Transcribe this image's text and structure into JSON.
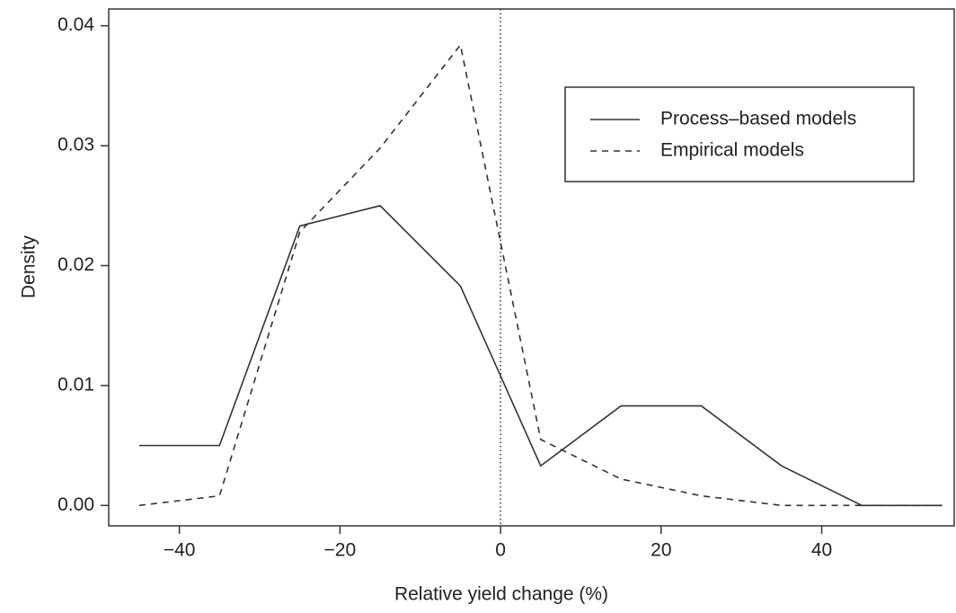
{
  "chart_data": {
    "type": "line",
    "x_label": "Relative yield change (%)",
    "y_label": "Density",
    "x": [
      -45,
      -35,
      -25,
      -15,
      -5,
      5,
      15,
      25,
      35,
      45,
      55
    ],
    "series": [
      {
        "name": "Process–based models",
        "color": "#333333",
        "linestyle": "solid",
        "values": [
          0.005,
          0.005,
          0.0233,
          0.025,
          0.0183,
          0.0033,
          0.0083,
          0.0083,
          0.0033,
          0,
          0
        ]
      },
      {
        "name": "Empirical models",
        "color": "#333333",
        "linestyle": "dashed",
        "values": [
          0,
          0.0008,
          0.0228,
          0.0298,
          0.0384,
          0.0055,
          0.0022,
          0.0008,
          0,
          0,
          0
        ]
      }
    ],
    "xlim": [
      -48.8,
      56.5
    ],
    "ylim": [
      -0.0017,
      0.0414
    ],
    "xticks": [
      {
        "value": -40,
        "label": "−40"
      },
      {
        "value": -20,
        "label": "−20"
      },
      0,
      20,
      40
    ],
    "yticks": [
      {
        "value": 0,
        "label": "0.00"
      },
      0.01,
      0.02,
      0.03,
      0.04
    ],
    "vline": 0,
    "legend_loc": "upper right",
    "grid": false
  }
}
